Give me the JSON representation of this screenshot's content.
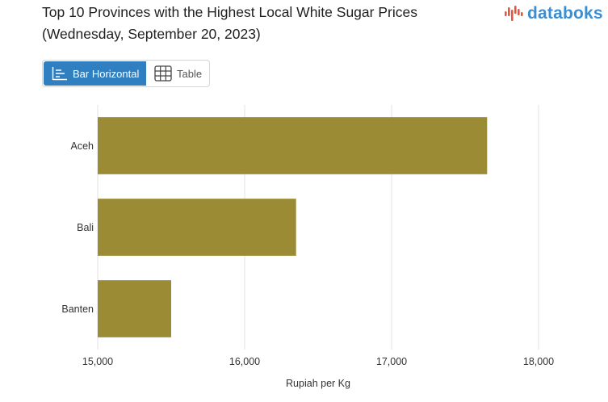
{
  "header": {
    "title_line1": "Top 10 Provinces with the Highest Local White Sugar Prices",
    "title_line2": "(Wednesday, September 20, 2023)",
    "logo_text": "databoks"
  },
  "toggle": {
    "active_label": "Bar Horizontal",
    "inactive_label": "Table"
  },
  "colors": {
    "bar": "#9c8b35",
    "accent": "#2f7fc1",
    "grid": "#e2e2e2",
    "logo": "#3a8fd4",
    "logo_mark": "#e8553e"
  },
  "chart_data": {
    "type": "bar",
    "orientation": "horizontal",
    "categories": [
      "Aceh",
      "Bali",
      "Banten"
    ],
    "values": [
      17650,
      16350,
      15500
    ],
    "xlabel": "Rupiah per Kg",
    "ylabel": "",
    "xlim": [
      15000,
      18000
    ],
    "xticks": [
      15000,
      16000,
      17000,
      18000
    ],
    "xtick_labels": [
      "15,000",
      "16,000",
      "17,000",
      "18,000"
    ],
    "grid": true
  }
}
